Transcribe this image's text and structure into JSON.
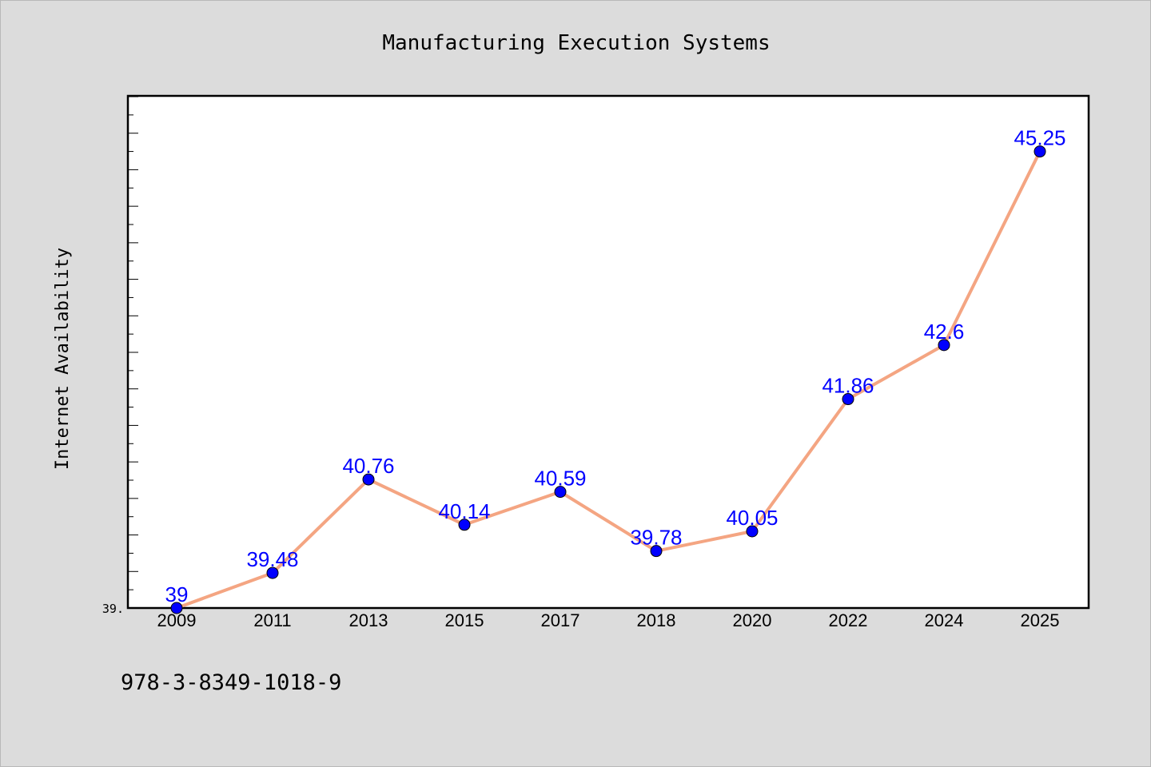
{
  "chart_data": {
    "type": "line",
    "title": "Manufacturing Execution Systems",
    "xlabel": "",
    "ylabel": "Internet Availability",
    "categories": [
      "2009",
      "2011",
      "2013",
      "2015",
      "2017",
      "2018",
      "2020",
      "2022",
      "2024",
      "2025"
    ],
    "series": [
      {
        "values": [
          39,
          39.48,
          40.76,
          40.14,
          40.59,
          39.78,
          40.05,
          41.86,
          42.6,
          45.25
        ]
      }
    ],
    "data_labels": [
      "39",
      "39.48",
      "40.76",
      "40.14",
      "40.59",
      "39.78",
      "40.05",
      "41.86",
      "42.6",
      "45.25"
    ],
    "y_tick_label": "39.",
    "ylim": [
      39,
      46
    ],
    "grid": false,
    "legend": "none",
    "colors": {
      "line": "#f4a582",
      "marker": "#0000ff",
      "label": "#0000ff",
      "background": "#dcdcdc",
      "plot_background": "#ffffff"
    }
  },
  "footer": {
    "isbn": "978-3-8349-1018-9"
  }
}
